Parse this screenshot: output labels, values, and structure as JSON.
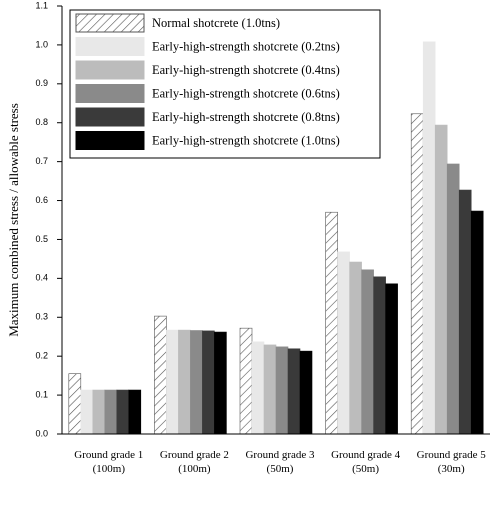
{
  "chart_data": {
    "type": "bar",
    "y_label": "Maximum combined stress / allowable stress",
    "categories": [
      [
        "Ground grade 1",
        "(100m)"
      ],
      [
        "Ground grade 2",
        "(100m)"
      ],
      [
        "Ground grade 3",
        "(50m)"
      ],
      [
        "Ground grade 4",
        "(50m)"
      ],
      [
        "Ground grade 5",
        "(30m)"
      ]
    ],
    "series": [
      {
        "name": "Normal shotcrete (1.0tns)",
        "color": "#ffffff",
        "hatch": true,
        "values": [
          0.155,
          0.303,
          0.272,
          0.57,
          0.823
        ]
      },
      {
        "name": "Early-high-strength shotcrete (0.2tns)",
        "color": "#e8e8e8",
        "values": [
          0.113,
          0.267,
          0.237,
          0.468,
          1.008
        ]
      },
      {
        "name": "Early-high-strength shotcrete (0.4tns)",
        "color": "#bcbcbc",
        "values": [
          0.113,
          0.267,
          0.229,
          0.442,
          0.794
        ]
      },
      {
        "name": "Early-high-strength shotcrete (0.6tns)",
        "color": "#8a8a8a",
        "values": [
          0.113,
          0.266,
          0.224,
          0.422,
          0.694
        ]
      },
      {
        "name": "Early-high-strength shotcrete (0.8tns)",
        "color": "#3a3a3a",
        "values": [
          0.113,
          0.265,
          0.219,
          0.404,
          0.627
        ]
      },
      {
        "name": "Early-high-strength shotcrete (1.0tns)",
        "color": "#000000",
        "values": [
          0.113,
          0.262,
          0.213,
          0.386,
          0.573
        ]
      }
    ],
    "ylim": [
      0,
      1.1
    ],
    "yticks": [
      {
        "value": 0,
        "label": "0.0"
      },
      0.1,
      0.2,
      0.3,
      0.4,
      0.5,
      0.6,
      0.7,
      0.8,
      0.9,
      {
        "value": 1,
        "label": "1.0"
      },
      1.1
    ],
    "legend": "upper left"
  }
}
